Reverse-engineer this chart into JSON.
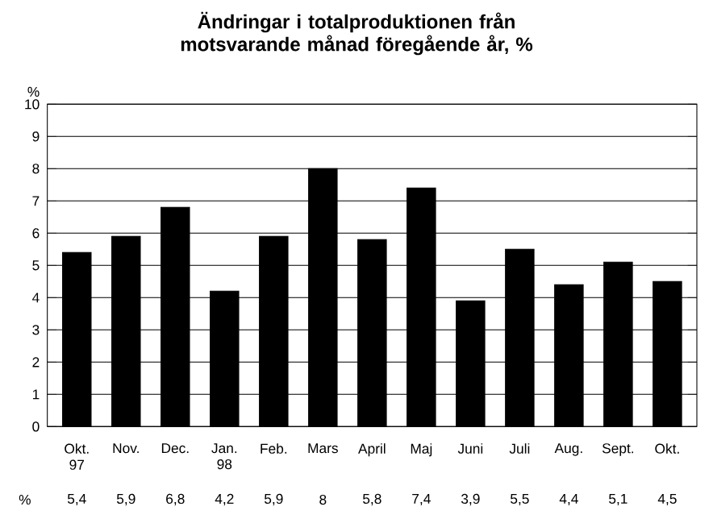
{
  "chart_data": {
    "type": "bar",
    "title": "Ändringar i totalproduktionen från motsvarande månad föregående år, %",
    "ylabel": "%",
    "categories": [
      "Okt. 97",
      "Nov.",
      "Dec.",
      "Jan. 98",
      "Feb.",
      "Mars",
      "April",
      "Maj",
      "Juni",
      "Juli",
      "Aug.",
      "Sept.",
      "Okt."
    ],
    "values": [
      5.4,
      5.9,
      6.8,
      4.2,
      5.9,
      8,
      5.8,
      7.4,
      3.9,
      5.5,
      4.4,
      5.1,
      4.5
    ],
    "value_labels": [
      "5,4",
      "5,9",
      "6,8",
      "4,2",
      "5,9",
      "8",
      "5,8",
      "7,4",
      "3,9",
      "5,5",
      "4,4",
      "5,1",
      "4,5"
    ],
    "annotations": [
      "%"
    ],
    "color": "#000000",
    "ylim": [
      0,
      10
    ],
    "yticks": [
      0,
      1,
      2,
      3,
      4,
      5,
      6,
      7,
      8,
      9,
      10
    ],
    "grid": "y"
  }
}
